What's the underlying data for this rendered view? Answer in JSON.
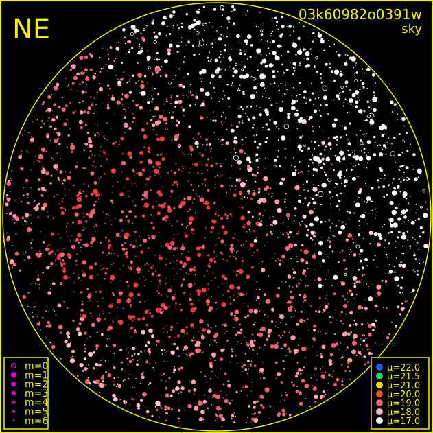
{
  "header": {
    "direction": "NE",
    "image_id": "03k60982o0391w",
    "subtitle": "sky"
  },
  "colors": {
    "frame": "#f0f000",
    "background": "#000000"
  },
  "magnitude_legend": {
    "symbol_color": "#e000e0",
    "items": [
      {
        "label": "m=0",
        "style": "ring"
      },
      {
        "label": "m=1",
        "style": "dot"
      },
      {
        "label": "m=2",
        "style": "dot"
      },
      {
        "label": "m=3",
        "style": "dot"
      },
      {
        "label": "m=4",
        "style": "dot"
      },
      {
        "label": "m=5",
        "style": "dot"
      },
      {
        "label": "m=6",
        "style": "dot"
      }
    ]
  },
  "surface_brightness_legend": {
    "items": [
      {
        "label": "μ=22.0",
        "color": "#1e5aff"
      },
      {
        "label": "μ=21.5",
        "color": "#19e060"
      },
      {
        "label": "μ=21.0",
        "color": "#ffd800"
      },
      {
        "label": "μ=20.0",
        "color": "#ff5010"
      },
      {
        "label": "μ=19.0",
        "color": "#f06070"
      },
      {
        "label": "μ=18.0",
        "color": "#ffb8c8"
      },
      {
        "label": "μ=17.0",
        "color": "#ffffff"
      }
    ]
  }
}
